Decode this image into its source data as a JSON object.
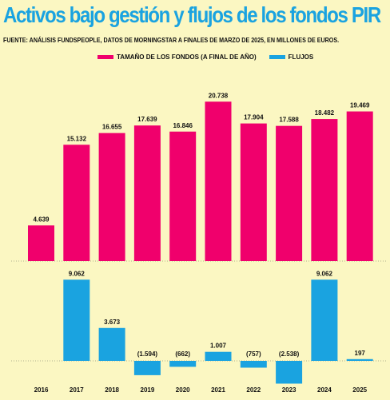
{
  "title": "Activos bajo gestión y flujos de los fondos PIR",
  "subtitle": "FUENTE: ANÁLISIS FUNDSPEOPLE, DATOS DE MORNINGSTAR A FINALES DE MARZO DE 2025, EN MILLONES DE EUROS.",
  "colors": {
    "background": "#fbf7c2",
    "size_series": "#f0006c",
    "flows_series": "#1aa3e0",
    "title": "#1aa3e0"
  },
  "chart_data": {
    "type": "bar",
    "categories": [
      "2016",
      "2017",
      "2018",
      "2019",
      "2020",
      "2021",
      "2022",
      "2023",
      "2024",
      "2025"
    ],
    "series": [
      {
        "name": "TAMAÑO DE LOS FONDOS (A FINAL DE AÑO)",
        "values": [
          4639,
          15132,
          16655,
          17639,
          16846,
          20738,
          17904,
          17588,
          18482,
          19469
        ],
        "labels": [
          "4.639",
          "15.132",
          "16.655",
          "17.639",
          "16.846",
          "20.738",
          "17.904",
          "17.588",
          "18.482",
          "19.469"
        ]
      },
      {
        "name": "FLUJOS",
        "values": [
          null,
          9062,
          3673,
          -1594,
          -662,
          1007,
          -757,
          -2538,
          9062,
          197
        ],
        "labels": [
          "",
          "9.062",
          "3.673",
          "(1.594)",
          "(662)",
          "1.007",
          "(757)",
          "(2.538)",
          "9.062",
          "197"
        ]
      }
    ],
    "ylim_size": [
      0,
      21500
    ],
    "ylim_flows": [
      -3000,
      9800
    ],
    "legend_position": "top"
  }
}
